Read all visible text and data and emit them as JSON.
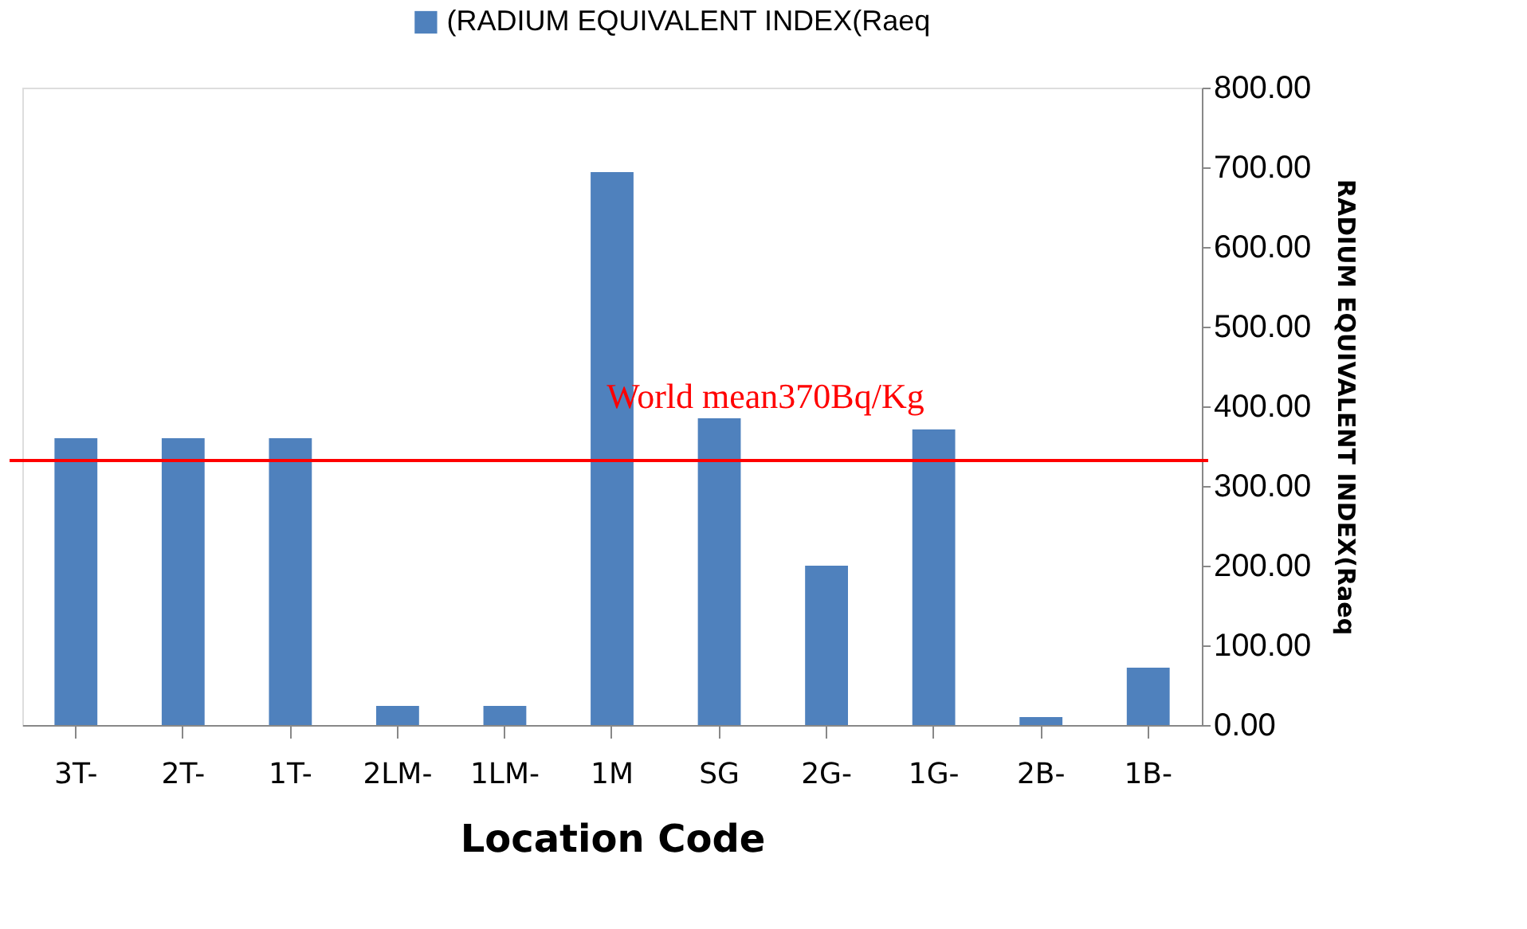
{
  "chart_data": {
    "type": "bar",
    "categories": [
      "3T-",
      "2T-",
      "1T-",
      "2LM-",
      "1LM-",
      "1M",
      "SG",
      "2G-",
      "1G-",
      "2B-",
      "1B-"
    ],
    "series": [
      {
        "name": "(RADIUM EQUIVALENT INDEX(Raeq",
        "color": "#4f81bd",
        "values": [
          360,
          360,
          360,
          24,
          24,
          694,
          385,
          200,
          371,
          10,
          72
        ]
      }
    ],
    "xlabel": "Location Code",
    "ylabel": "RADIUM EQUIVALENT INDEX(Raeq",
    "ylim": [
      0,
      800
    ],
    "yticks": [
      {
        "value": 0,
        "label": "0.00"
      },
      {
        "value": 100,
        "label": "100.00"
      },
      {
        "value": 200,
        "label": "200.00"
      },
      {
        "value": 300,
        "label": "300.00"
      },
      {
        "value": 400,
        "label": "400.00"
      },
      {
        "value": 500,
        "label": "500.00"
      },
      {
        "value": 600,
        "label": "600.00"
      },
      {
        "value": 700,
        "label": "700.00"
      },
      {
        "value": 800,
        "label": "800.00"
      }
    ],
    "ref_lines": [
      {
        "axis": "y",
        "value": 332,
        "label": "World mean370Bq/Kg",
        "color": "#ff0000"
      }
    ],
    "legend": "top",
    "grid": false
  }
}
